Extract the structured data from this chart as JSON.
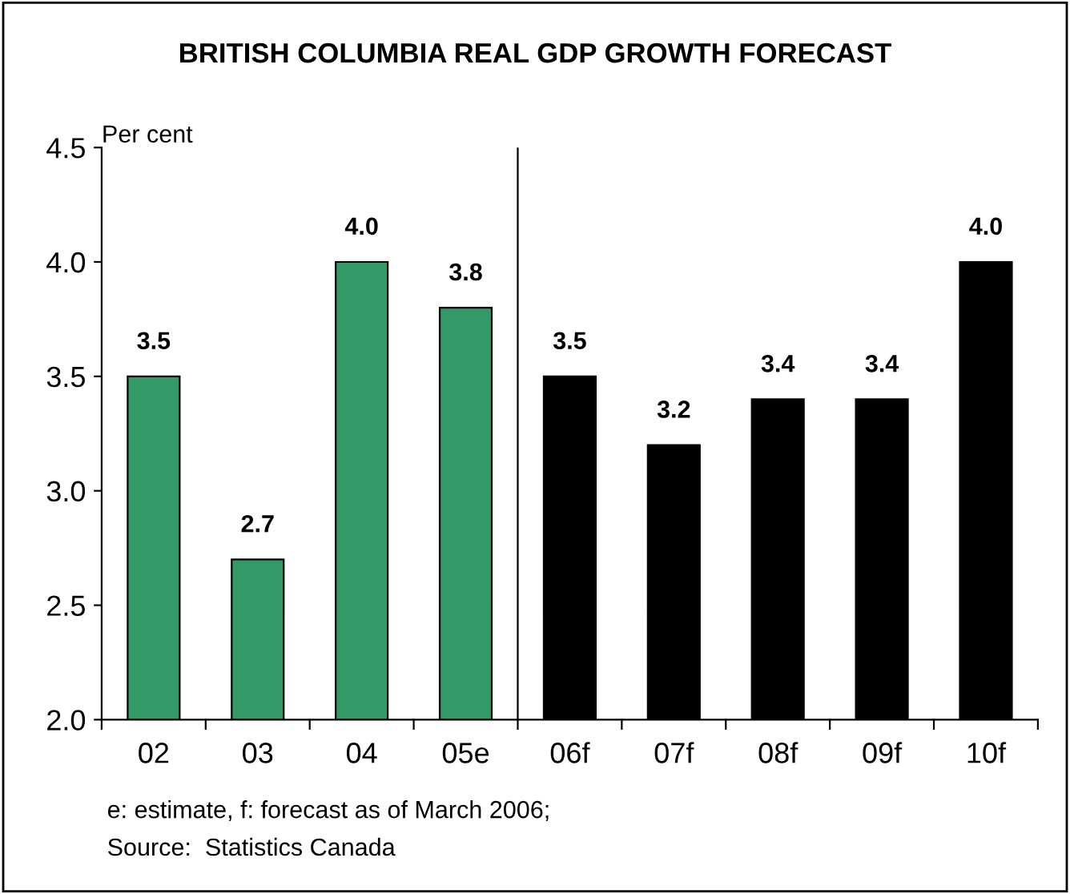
{
  "chart_data": {
    "type": "bar",
    "title": "BRITISH COLUMBIA REAL GDP GROWTH FORECAST",
    "ylabel": "Per cent",
    "categories": [
      "02",
      "03",
      "04",
      "05e",
      "06f",
      "07f",
      "08f",
      "09f",
      "10f"
    ],
    "values": [
      3.5,
      2.7,
      4.0,
      3.8,
      3.5,
      3.2,
      3.4,
      3.4,
      4.0
    ],
    "value_labels": [
      "3.5",
      "2.7",
      "4.0",
      "3.8",
      "3.5",
      "3.2",
      "3.4",
      "3.4",
      "4.0"
    ],
    "colors": [
      "#339966",
      "#339966",
      "#339966",
      "#339966",
      "#000000",
      "#000000",
      "#000000",
      "#000000",
      "#000000"
    ],
    "ylim": [
      2.0,
      4.5
    ],
    "yticks": [
      {
        "value": 2,
        "label": "2.0"
      },
      2.5,
      {
        "value": 3,
        "label": "3.0"
      },
      3.5,
      {
        "value": 4,
        "label": "4.0"
      },
      4.5
    ],
    "annotations": [
      "e: estimate, f: forecast as of March 2006;",
      "Source:  Statistics Canada"
    ]
  }
}
